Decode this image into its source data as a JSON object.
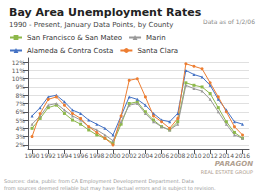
{
  "chart_data": {
    "type": "line",
    "title": "Bay Area Unemployment Rates",
    "subtitle": "1990 - Present, January Data Points, by County",
    "annotations": [
      "Data as of 1/2/06",
      "PARAGON",
      "REAL ESTATE GROUP",
      "Sources: data, public from CA Employment Development Department. Data",
      "from sources deemed reliable but may have factual errors and is subject to revision."
    ],
    "x": [
      1990,
      1991,
      1992,
      1993,
      1994,
      1995,
      1996,
      1997,
      1998,
      1999,
      2000,
      2001,
      2002,
      2003,
      2004,
      2005,
      2006,
      2007,
      2008,
      2009,
      2010,
      2011,
      2012,
      2013,
      2014,
      2015,
      2016
    ],
    "series": [
      {
        "name": "San Francisco & San Mateo",
        "color": "#8db84a",
        "marker": "square",
        "values": [
          4.0,
          5.2,
          6.5,
          6.8,
          5.8,
          5.0,
          4.5,
          3.8,
          3.2,
          2.8,
          2.2,
          4.5,
          7.0,
          7.2,
          6.0,
          5.0,
          4.2,
          3.8,
          4.8,
          9.5,
          9.2,
          9.0,
          8.2,
          6.5,
          4.8,
          3.5,
          2.8
        ]
      },
      {
        "name": "Marin",
        "color": "#999999",
        "marker": "triangle",
        "values": [
          4.5,
          5.5,
          6.8,
          7.0,
          6.2,
          5.5,
          5.0,
          4.2,
          3.8,
          3.2,
          2.5,
          4.8,
          6.8,
          7.0,
          5.8,
          4.8,
          4.2,
          3.8,
          4.5,
          9.2,
          8.8,
          8.5,
          7.5,
          6.0,
          4.5,
          3.2,
          2.8
        ]
      },
      {
        "name": "Alameda & Contra Costa",
        "color": "#4472c4",
        "marker": "triangle",
        "values": [
          5.5,
          6.5,
          7.8,
          8.0,
          7.2,
          6.2,
          5.8,
          5.0,
          4.5,
          4.0,
          3.2,
          5.5,
          7.8,
          7.5,
          6.8,
          5.8,
          5.0,
          4.8,
          5.8,
          11.0,
          10.5,
          10.2,
          9.2,
          7.5,
          6.2,
          4.8,
          4.5
        ]
      },
      {
        "name": "Santa Clara",
        "color": "#ed7d31",
        "marker": "circle",
        "values": [
          3.0,
          5.8,
          7.5,
          7.8,
          6.8,
          5.8,
          5.2,
          4.2,
          3.5,
          2.8,
          2.0,
          5.5,
          9.8,
          10.0,
          7.8,
          5.5,
          4.8,
          4.0,
          5.2,
          11.8,
          11.5,
          11.2,
          9.5,
          7.8,
          6.0,
          4.2,
          3.2
        ]
      }
    ],
    "xlim": [
      1989.5,
      2016.8
    ],
    "xticks": [
      1990,
      1992,
      1994,
      1996,
      1998,
      2000,
      2002,
      2004,
      2006,
      2008,
      2010,
      2012,
      2014,
      2016
    ],
    "ylim": [
      1.5,
      12.5
    ],
    "yticks": [
      {
        "value": 2,
        "label": "2%"
      },
      {
        "value": 3,
        "label": "3%"
      },
      {
        "value": 4,
        "label": "4%"
      },
      {
        "value": 5,
        "label": "5%"
      },
      {
        "value": 6,
        "label": "6%"
      },
      {
        "value": 7,
        "label": "7%"
      },
      {
        "value": 8,
        "label": "8%"
      },
      {
        "value": 9,
        "label": "9%"
      },
      {
        "value": 10,
        "label": "10%"
      },
      {
        "value": 11,
        "label": "11%"
      },
      {
        "value": 12,
        "label": "12%"
      }
    ],
    "grid": "y",
    "legend": "upper left"
  }
}
